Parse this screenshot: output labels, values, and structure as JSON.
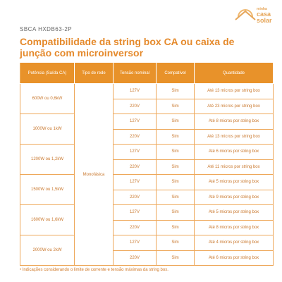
{
  "header": {
    "code": "SBCA HXDB63-2P",
    "title": "Compatibilidade da string box CA ou caixa de junção com microinversor",
    "logo": [
      "minha",
      "casa",
      "solar"
    ]
  },
  "table": {
    "columns": [
      "Potência (Saída CA)",
      "Tipo de rede",
      "Tensão nominal",
      "Compatível",
      "Quantidade"
    ],
    "network": "Monofásica",
    "groups": [
      {
        "power": "600W ou 0,6kW",
        "rows": [
          [
            "127V",
            "Sim",
            "Até 13 micros por string box"
          ],
          [
            "220V",
            "Sim",
            "Até 23 micros por string box"
          ]
        ]
      },
      {
        "power": "1000W ou 1kW",
        "rows": [
          [
            "127V",
            "Sim",
            "Até 8 micros por string box"
          ],
          [
            "220V",
            "Sim",
            "Até 13 micros por string box"
          ]
        ]
      },
      {
        "power": "1200W ou 1,2kW",
        "rows": [
          [
            "127V",
            "Sim",
            "Até 6 micros por string box"
          ],
          [
            "220V",
            "Sim",
            "Até 11 micros por string box"
          ]
        ]
      },
      {
        "power": "1500W ou 1,5kW",
        "rows": [
          [
            "127V",
            "Sim",
            "Até 5 micros por string box"
          ],
          [
            "220V",
            "Sim",
            "Até 9 micros por string box"
          ]
        ]
      },
      {
        "power": "1600W ou 1,6kW",
        "rows": [
          [
            "127V",
            "Sim",
            "Até 5 micros por string box"
          ],
          [
            "220V",
            "Sim",
            "Até 8 micros por string box"
          ]
        ]
      },
      {
        "power": "2000W ou 2kW",
        "rows": [
          [
            "127V",
            "Sim",
            "Até 4 micros por string box"
          ],
          [
            "220V",
            "Sim",
            "Até 6 micros por string box"
          ]
        ]
      }
    ]
  },
  "footnote": "• Indicações considerando o limite de corrente e tensão máximas da string box."
}
